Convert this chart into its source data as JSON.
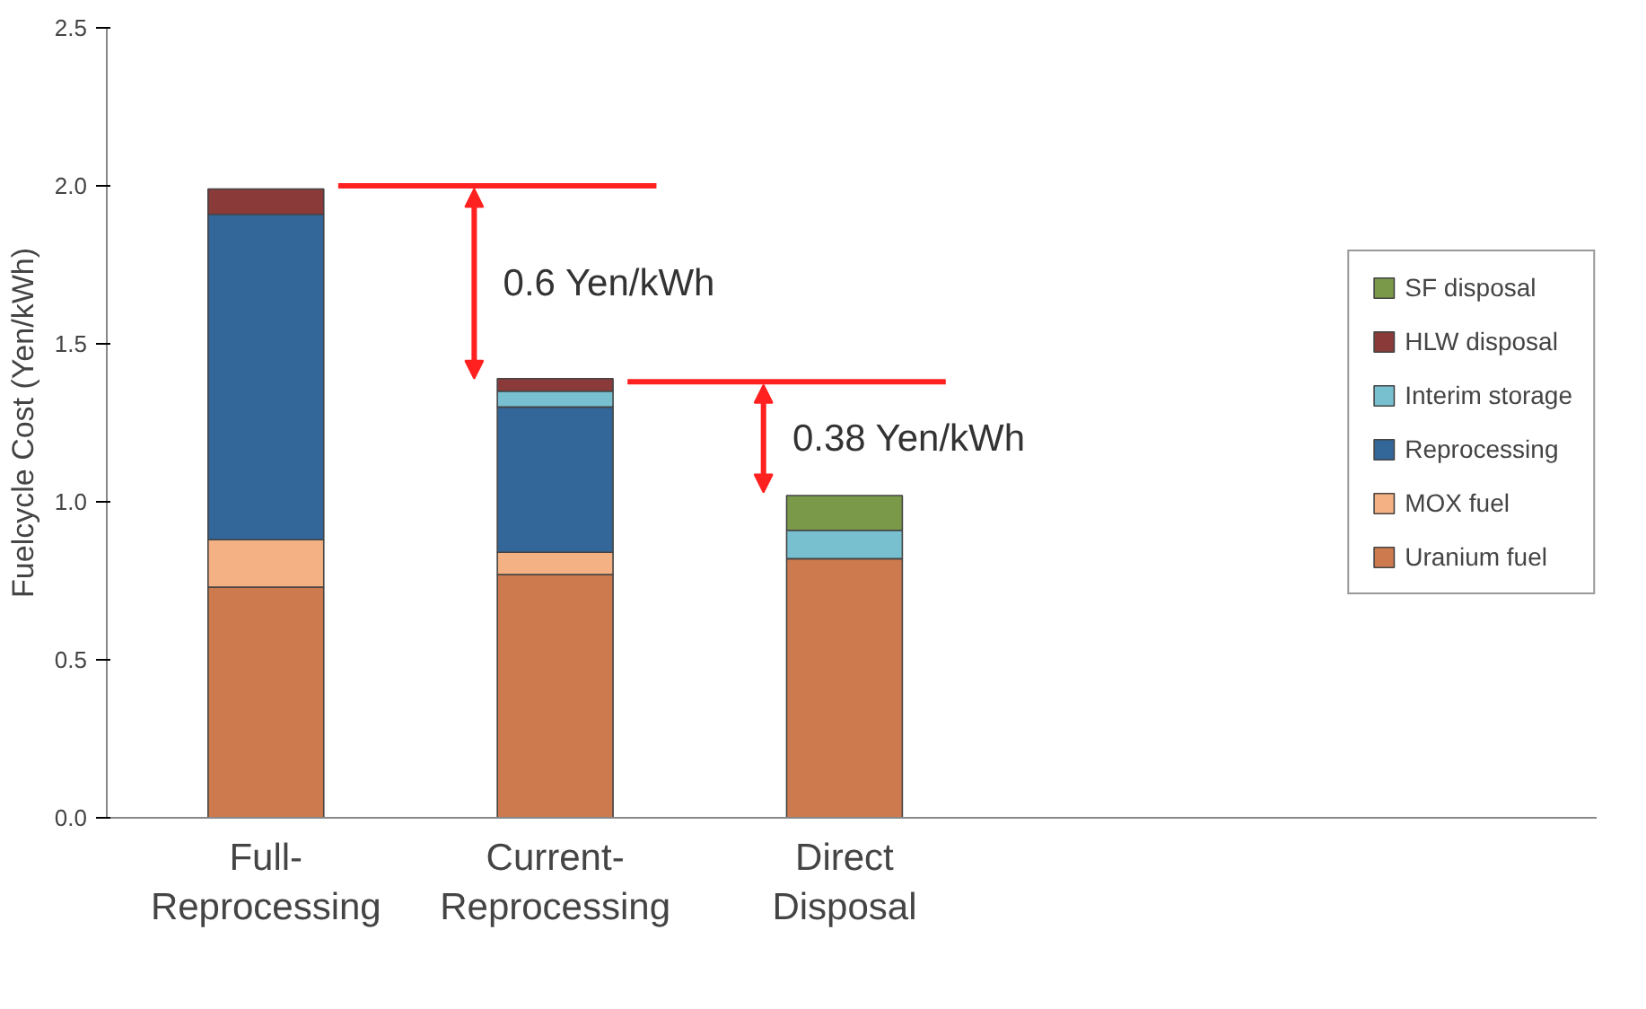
{
  "chart_data": {
    "type": "bar",
    "stacked": true,
    "ylabel": "Fuelcycle Cost (Yen/kWh)",
    "categories": [
      "Full-\nReprocessing",
      "Current-\nReprocessing",
      "Direct\nDisposal"
    ],
    "series": [
      {
        "name": "Uranium fuel",
        "color": "#cc7a4e",
        "values": [
          0.73,
          0.77,
          0.82
        ]
      },
      {
        "name": "MOX fuel",
        "color": "#f4b183",
        "values": [
          0.15,
          0.07,
          null
        ]
      },
      {
        "name": "Reprocessing",
        "color": "#336699",
        "values": [
          1.03,
          0.46,
          null
        ]
      },
      {
        "name": "Interim storage",
        "color": "#78c0d0",
        "values": [
          null,
          0.05,
          0.09
        ]
      },
      {
        "name": "HLW disposal",
        "color": "#8b3a3a",
        "values": [
          0.08,
          0.04,
          null
        ]
      },
      {
        "name": "SF disposal",
        "color": "#7a9a4a",
        "values": [
          null,
          null,
          0.11
        ]
      }
    ],
    "ylim": [
      0,
      2.5
    ],
    "yticks": [
      {
        "value": 0,
        "label": "0.0"
      },
      {
        "value": 0.5,
        "label": "0.5"
      },
      {
        "value": 1,
        "label": "1.0"
      },
      {
        "value": 1.5,
        "label": "1.5"
      },
      {
        "value": 2,
        "label": "2.0"
      },
      {
        "value": 2.5,
        "label": "2.5"
      }
    ],
    "ref_lines": [
      {
        "axis": "y",
        "value": 2.0,
        "color": "#ff2020"
      },
      {
        "axis": "y",
        "value": 1.38,
        "color": "#ff2020"
      }
    ],
    "annotations": [
      "0.6 Yen/kWh",
      "0.38 Yen/kWh"
    ],
    "grid": false,
    "legend": "right"
  }
}
